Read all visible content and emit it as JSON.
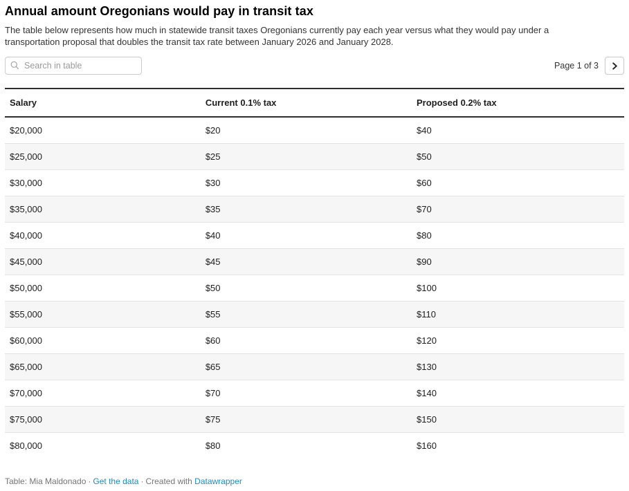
{
  "header": {
    "title": "Annual amount Oregonians would pay in transit tax",
    "description": "The table below represents how much in statewide transit taxes Oregonians currently pay each year versus what they would pay under a transportation proposal that doubles the transit tax rate between January 2026 and January 2028."
  },
  "toolbar": {
    "search_placeholder": "Search in table",
    "search_value": "",
    "page_label": "Page 1 of 3",
    "next_icon": "chevron-right"
  },
  "chart_data": {
    "type": "table",
    "columns": [
      "Salary",
      "Current 0.1% tax",
      "Proposed 0.2% tax"
    ],
    "rows": [
      [
        "$20,000",
        "$20",
        "$40"
      ],
      [
        "$25,000",
        "$25",
        "$50"
      ],
      [
        "$30,000",
        "$30",
        "$60"
      ],
      [
        "$35,000",
        "$35",
        "$70"
      ],
      [
        "$40,000",
        "$40",
        "$80"
      ],
      [
        "$45,000",
        "$45",
        "$90"
      ],
      [
        "$50,000",
        "$50",
        "$100"
      ],
      [
        "$55,000",
        "$55",
        "$110"
      ],
      [
        "$60,000",
        "$60",
        "$120"
      ],
      [
        "$65,000",
        "$65",
        "$130"
      ],
      [
        "$70,000",
        "$70",
        "$140"
      ],
      [
        "$75,000",
        "$75",
        "$150"
      ],
      [
        "$80,000",
        "$80",
        "$160"
      ]
    ],
    "title": "Annual amount Oregonians would pay in transit tax",
    "layout": {
      "striped_rows": true,
      "stripe_color": "#f6f6f6",
      "header_border_color": "#2e2e2e"
    }
  },
  "footer": {
    "credit": "Table: Mia Maldonado",
    "separator": "·",
    "get_data_link": "Get the data",
    "created_with": "Created with",
    "datawrapper_link": "Datawrapper"
  },
  "colors": {
    "link_blue": "#1d8bc4",
    "row_stripe": "#f6f6f6",
    "row_divider": "#e3e3e3",
    "header_border": "#2e2e2e",
    "text": "#1d1d1d",
    "muted_text": "#757575"
  }
}
